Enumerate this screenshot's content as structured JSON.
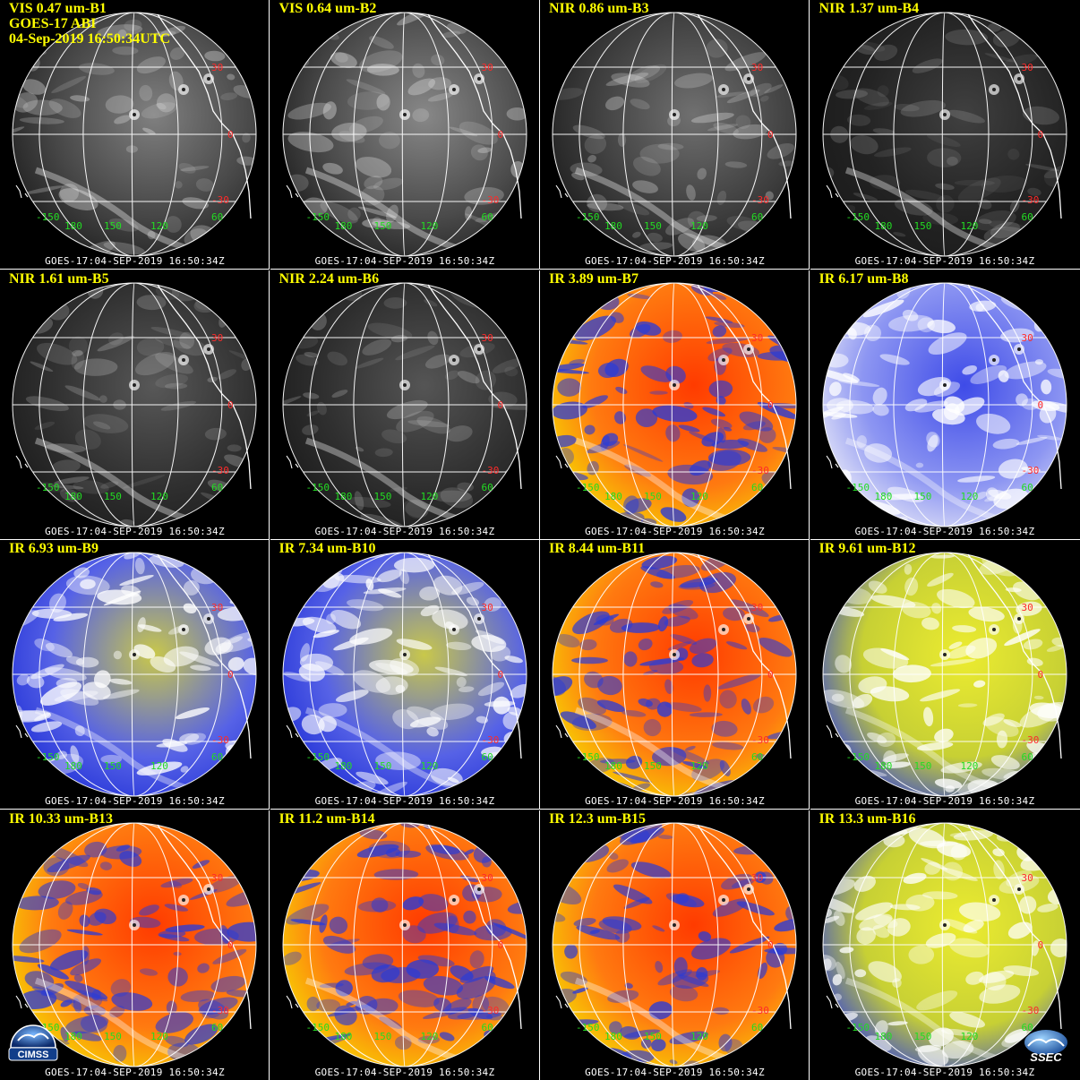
{
  "header": {
    "line2": "GOES-17 ABI",
    "line3": "04-Sep-2019 16:50:34UTC"
  },
  "panels": [
    {
      "title": "VIS 0.47 um-B1",
      "style": "vis",
      "brightness": 0.55
    },
    {
      "title": "VIS 0.64 um-B2",
      "style": "vis",
      "brightness": 0.6
    },
    {
      "title": "NIR 0.86 um-B3",
      "style": "vis",
      "brightness": 0.45
    },
    {
      "title": "NIR 1.37 um-B4",
      "style": "vis",
      "brightness": 0.15
    },
    {
      "title": "NIR 1.61 um-B5",
      "style": "vis",
      "brightness": 0.3
    },
    {
      "title": "NIR 2.24 um-B6",
      "style": "vis",
      "brightness": 0.28
    },
    {
      "title": "IR 3.89 um-B7",
      "style": "irwarm"
    },
    {
      "title": "IR 6.17 um-B8",
      "style": "wv_white"
    },
    {
      "title": "IR 6.93 um-B9",
      "style": "wv_blue"
    },
    {
      "title": "IR 7.34 um-B10",
      "style": "wv_blue"
    },
    {
      "title": "IR 8.44 um-B11",
      "style": "irwarm"
    },
    {
      "title": "IR 9.61 um-B12",
      "style": "ozone"
    },
    {
      "title": "IR 10.33 um-B13",
      "style": "irwarm"
    },
    {
      "title": "IR 11.2 um-B14",
      "style": "irwarm"
    },
    {
      "title": "IR 12.3 um-B15",
      "style": "irwarm"
    },
    {
      "title": "IR 13.3 um-B16",
      "style": "ozone"
    }
  ],
  "timestamp": "GOES-17:04-SEP-2019 16:50:34Z",
  "lat_labels": [
    "30",
    "0",
    "-30"
  ],
  "lon_labels": [
    "-150",
    "180",
    "150",
    "120",
    "60"
  ],
  "logos": {
    "cimss": "CIMSS",
    "ssec": "SSEC"
  },
  "colors": {
    "title": "#ffff00",
    "latitude_label": "#ff2a2a",
    "longitude_label": "#22dd22",
    "grid_line": "#ffffff",
    "background": "#000000"
  }
}
